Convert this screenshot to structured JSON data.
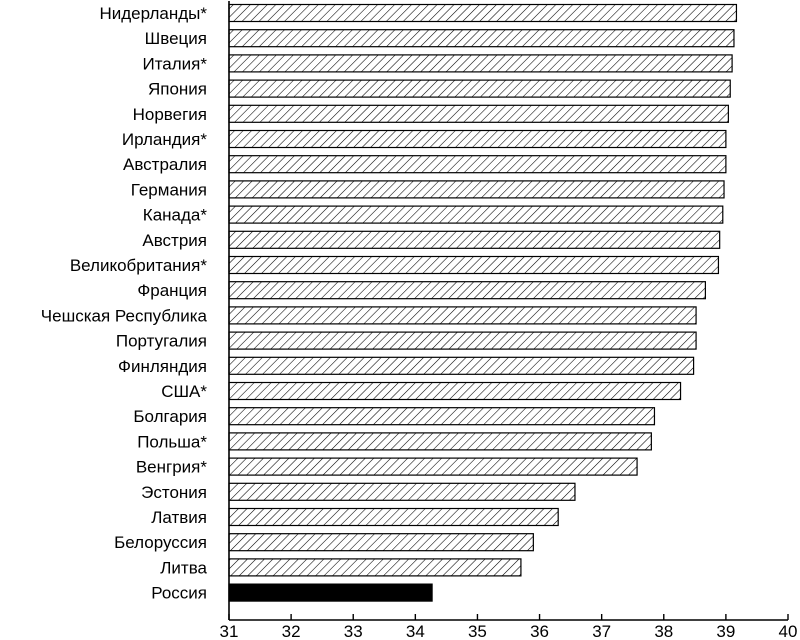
{
  "chart_data": {
    "type": "bar",
    "orientation": "horizontal",
    "title": "",
    "xlabel": "",
    "ylabel": "",
    "xlim": [
      31,
      40
    ],
    "xticks": [
      31,
      32,
      33,
      34,
      35,
      36,
      37,
      38,
      39,
      40
    ],
    "grid": false,
    "legend": "none",
    "categories": [
      "Нидерланды*",
      "Швеция",
      "Италия*",
      "Япония",
      "Норвегия",
      "Ирландия*",
      "Австралия",
      "Германия",
      "Канада*",
      "Австрия",
      "Великобритания*",
      "Франция",
      "Чешская Республика",
      "Португалия",
      "Финляндия",
      "США*",
      "Болгария",
      "Польша*",
      "Венгрия*",
      "Эстония",
      "Латвия",
      "Белоруссия",
      "Литва",
      "Россия"
    ],
    "values": [
      39.17,
      39.13,
      39.1,
      39.07,
      39.04,
      39.0,
      39.0,
      38.97,
      38.95,
      38.9,
      38.88,
      38.67,
      38.52,
      38.52,
      38.48,
      38.27,
      37.85,
      37.8,
      37.57,
      36.57,
      36.3,
      35.9,
      35.7,
      34.27
    ],
    "highlight": "Россия",
    "colors": {
      "bar_stroke": "#000000",
      "hatch": "#000000",
      "highlight_fill": "#000000"
    }
  }
}
